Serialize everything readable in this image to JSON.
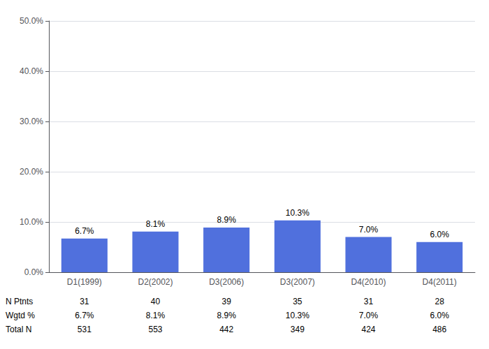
{
  "chart_data": {
    "type": "bar",
    "categories": [
      "D1(1999)",
      "D2(2002)",
      "D3(2006)",
      "D3(2007)",
      "D4(2010)",
      "D4(2011)"
    ],
    "values": [
      6.7,
      8.1,
      8.9,
      10.3,
      7.0,
      6.0
    ],
    "value_labels": [
      "6.7%",
      "8.1%",
      "8.9%",
      "10.3%",
      "7.0%",
      "6.0%"
    ],
    "data_labels": true,
    "ylim": [
      0,
      50
    ],
    "yticks": [
      {
        "value": 0,
        "label": "0.0%"
      },
      {
        "value": 10,
        "label": "10.0%"
      },
      {
        "value": 20,
        "label": "20.0%"
      },
      {
        "value": 30,
        "label": "30.0%"
      },
      {
        "value": 40,
        "label": "40.0%"
      },
      {
        "value": 50,
        "label": "50.0%"
      }
    ],
    "grid": true,
    "table": [
      {
        "label": "N Ptnts",
        "values": [
          31,
          40,
          39,
          35,
          31,
          28
        ]
      },
      {
        "label": "Wgtd %",
        "values": [
          6.7,
          8.1,
          8.9,
          10.3,
          7.0,
          6.0
        ],
        "value_labels": [
          "6.7%",
          "8.1%",
          "8.9%",
          "10.3%",
          "7.0%",
          "6.0%"
        ]
      },
      {
        "label": "Total N",
        "values": [
          531,
          553,
          442,
          349,
          424,
          486
        ]
      }
    ]
  }
}
